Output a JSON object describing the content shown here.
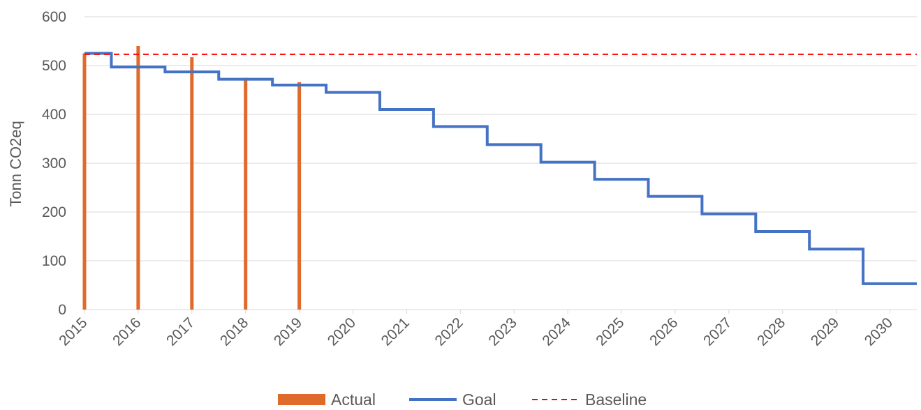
{
  "chart_data": {
    "type": "line",
    "title": "",
    "xlabel": "",
    "ylabel": "Tonn CO2eq",
    "ylim": [
      0,
      600
    ],
    "yticks": [
      "0",
      "100",
      "200",
      "300",
      "400",
      "500",
      "600"
    ],
    "xlim": [
      2015,
      2030.5
    ],
    "xticks": [
      "2015",
      "2016",
      "2017",
      "2018",
      "2019",
      "2020",
      "2021",
      "2022",
      "2023",
      "2024",
      "2025",
      "2026",
      "2027",
      "2028",
      "2029",
      "2030"
    ],
    "grid": true,
    "legend_position": "bottom",
    "series": [
      {
        "name": "Actual",
        "type": "bar",
        "color": "#E06A2C",
        "x": [
          2015,
          2016,
          2017,
          2018,
          2019
        ],
        "values": [
          525,
          540,
          517,
          475,
          466
        ]
      },
      {
        "name": "Goal",
        "type": "step",
        "color": "#4472C4",
        "x": [
          2015,
          2016,
          2017,
          2018,
          2019,
          2020,
          2021,
          2022,
          2023,
          2024,
          2025,
          2026,
          2027,
          2028,
          2029,
          2030
        ],
        "values": [
          525,
          497,
          487,
          472,
          460,
          445,
          410,
          375,
          338,
          302,
          267,
          232,
          196,
          160,
          124,
          53
        ]
      },
      {
        "name": "Baseline",
        "type": "dashed-line",
        "color": "#FF0000",
        "values": [
          523
        ]
      }
    ]
  }
}
